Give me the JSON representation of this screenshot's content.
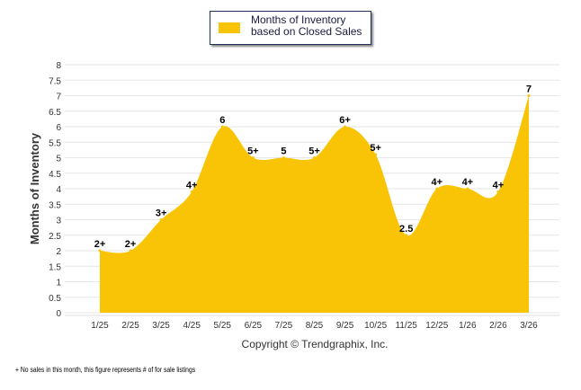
{
  "chart_data": {
    "type": "area",
    "title": "",
    "legend": [
      "Months of Inventory based on Closed Sales"
    ],
    "legend_placement": "top-center",
    "ylabel": "Months of Inventory",
    "xlabel": "Copyright © Trendgraphix, Inc.",
    "ylim": [
      0,
      8
    ],
    "yticks": [
      "0",
      "0.5",
      "1",
      "1.5",
      "2",
      "2.5",
      "3",
      "3.5",
      "4",
      "4.5",
      "5",
      "5.5",
      "6",
      "6.5",
      "7",
      "7.5",
      "8"
    ],
    "categories": [
      "1/25",
      "2/25",
      "3/25",
      "4/25",
      "5/25",
      "6/25",
      "7/25",
      "8/25",
      "9/25",
      "10/25",
      "11/25",
      "12/25",
      "1/26",
      "2/26",
      "3/26"
    ],
    "values": [
      2,
      2,
      3,
      3.9,
      6,
      5,
      5,
      5,
      6,
      5.1,
      2.5,
      4,
      4,
      3.9,
      7
    ],
    "data_labels": [
      "2+",
      "2+",
      "3+",
      "4+",
      "6",
      "5+",
      "5",
      "5+",
      "6+",
      "5+",
      "2.5",
      "4+",
      "4+",
      "4+",
      "7"
    ],
    "color": "#f8c405",
    "grid": true
  },
  "footnote": "+  No sales in this month, this figure represents # of for sale listings"
}
